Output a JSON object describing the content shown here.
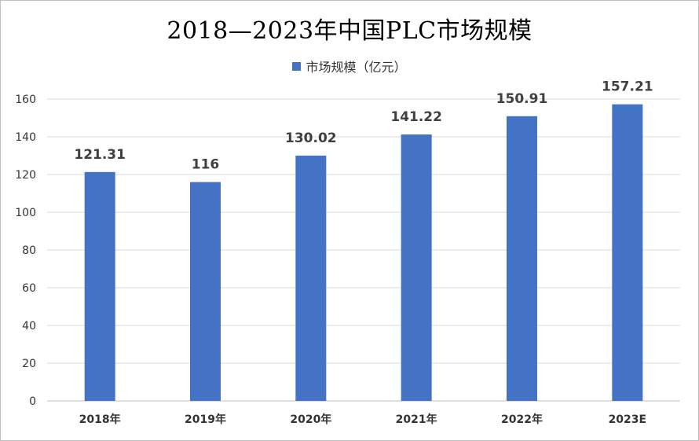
{
  "chart_data": {
    "type": "bar",
    "title": "2018—2023年中国PLC市场规模",
    "categories": [
      "2018年",
      "2019年",
      "2020年",
      "2021年",
      "2022年",
      "2023E"
    ],
    "series": [
      {
        "name": "市场规模（亿元）",
        "values": [
          121.31,
          116,
          130.02,
          141.22,
          150.91,
          157.21
        ],
        "labels": [
          "121.31",
          "116",
          "130.02",
          "141.22",
          "150.91",
          "157.21"
        ],
        "color": "#4472c4"
      }
    ],
    "ylim": [
      0,
      160
    ],
    "yticks": [
      0,
      20,
      40,
      60,
      80,
      100,
      120,
      140,
      160
    ],
    "grid": true,
    "legend": "top"
  }
}
